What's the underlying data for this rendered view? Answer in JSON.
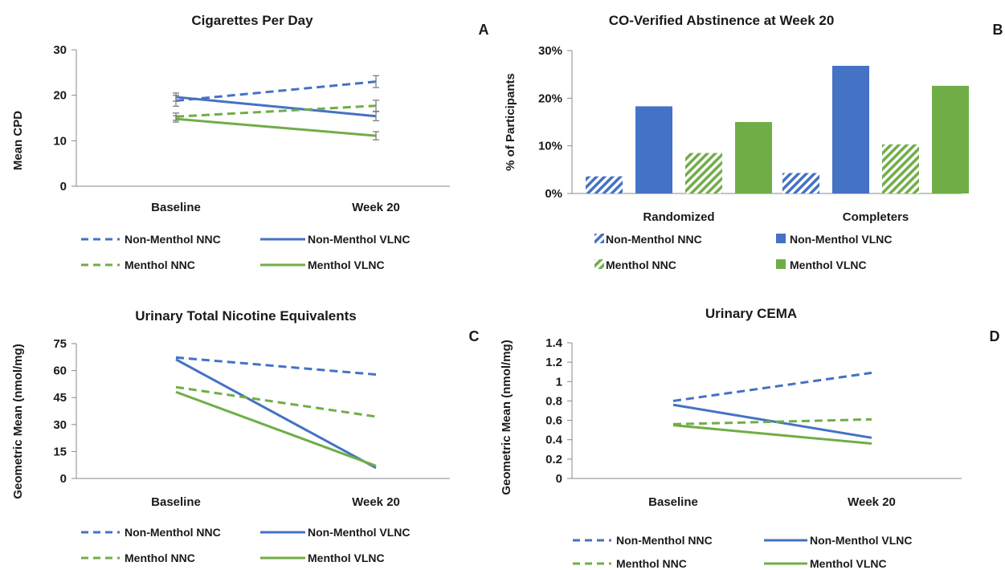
{
  "colors": {
    "non_menthol": "#4472c4",
    "menthol": "#70ad47"
  },
  "chart_data": [
    {
      "type": "line",
      "panel_letter": "A",
      "title": "Cigarettes Per Day",
      "ylabel": "Mean CPD",
      "ylim": [
        0,
        30
      ],
      "yticks": [
        "0",
        "10",
        "20",
        "30"
      ],
      "categories": [
        "Baseline",
        "Week 20"
      ],
      "error_bars": true,
      "series": [
        {
          "name": "Non-Menthol NNC",
          "style": "dashed",
          "group": "non_menthol",
          "values": [
            18.8,
            23.0
          ],
          "error": [
            1.2,
            1.3
          ]
        },
        {
          "name": "Non-Menthol VLNC",
          "style": "solid",
          "group": "non_menthol",
          "values": [
            19.6,
            15.4
          ],
          "error": [
            0.9,
            1.0
          ]
        },
        {
          "name": "Menthol NNC",
          "style": "dashed",
          "group": "menthol",
          "values": [
            15.3,
            17.7
          ],
          "error": [
            0.8,
            1.2
          ]
        },
        {
          "name": "Menthol VLNC",
          "style": "solid",
          "group": "menthol",
          "values": [
            14.8,
            11.1
          ],
          "error": [
            0.7,
            0.9
          ]
        }
      ]
    },
    {
      "type": "bar",
      "panel_letter": "B",
      "title": "CO-Verified Abstinence at Week 20",
      "ylabel": "% of Participants",
      "ylim": [
        0,
        30
      ],
      "yticks": [
        "0%",
        "10%",
        "20%",
        "30%"
      ],
      "categories": [
        "Randomized",
        "Completers"
      ],
      "series": [
        {
          "name": "Non-Menthol NNC",
          "style": "hatched",
          "group": "non_menthol",
          "values": [
            3.6,
            4.3
          ]
        },
        {
          "name": "Non-Menthol VLNC",
          "style": "solid",
          "group": "non_menthol",
          "values": [
            18.3,
            26.8
          ]
        },
        {
          "name": "Menthol NNC",
          "style": "hatched",
          "group": "menthol",
          "values": [
            8.5,
            10.3
          ]
        },
        {
          "name": "Menthol VLNC",
          "style": "solid",
          "group": "menthol",
          "values": [
            15.0,
            22.6
          ]
        }
      ]
    },
    {
      "type": "line",
      "panel_letter": "C",
      "title": "Urinary Total Nicotine Equivalents",
      "ylabel": "Geometric Mean (nmol/mg)",
      "ylim": [
        0,
        75
      ],
      "yticks": [
        "0",
        "15",
        "30",
        "45",
        "60",
        "75"
      ],
      "categories": [
        "Baseline",
        "Week 20"
      ],
      "error_bars": false,
      "series": [
        {
          "name": "Non-Menthol NNC",
          "style": "dashed",
          "group": "non_menthol",
          "values": [
            67.3,
            57.8
          ]
        },
        {
          "name": "Non-Menthol VLNC",
          "style": "solid",
          "group": "non_menthol",
          "values": [
            66.2,
            5.9
          ]
        },
        {
          "name": "Menthol NNC",
          "style": "dashed",
          "group": "menthol",
          "values": [
            50.8,
            34.4
          ]
        },
        {
          "name": "Menthol VLNC",
          "style": "solid",
          "group": "menthol",
          "values": [
            48.1,
            7.0
          ]
        }
      ]
    },
    {
      "type": "line",
      "panel_letter": "D",
      "title": "Urinary CEMA",
      "ylabel": "Geometric Mean (nmol/mg)",
      "ylim": [
        0,
        1.4
      ],
      "yticks": [
        "0",
        "0.2",
        "0.4",
        "0.6",
        "0.8",
        "1",
        "1.2",
        "1.4"
      ],
      "categories": [
        "Baseline",
        "Week 20"
      ],
      "error_bars": false,
      "series": [
        {
          "name": "Non-Menthol NNC",
          "style": "dashed",
          "group": "non_menthol",
          "values": [
            0.8,
            1.09
          ]
        },
        {
          "name": "Non-Menthol VLNC",
          "style": "solid",
          "group": "non_menthol",
          "values": [
            0.76,
            0.42
          ]
        },
        {
          "name": "Menthol NNC",
          "style": "dashed",
          "group": "menthol",
          "values": [
            0.56,
            0.61
          ]
        },
        {
          "name": "Menthol VLNC",
          "style": "solid",
          "group": "menthol",
          "values": [
            0.55,
            0.36
          ]
        }
      ]
    }
  ]
}
